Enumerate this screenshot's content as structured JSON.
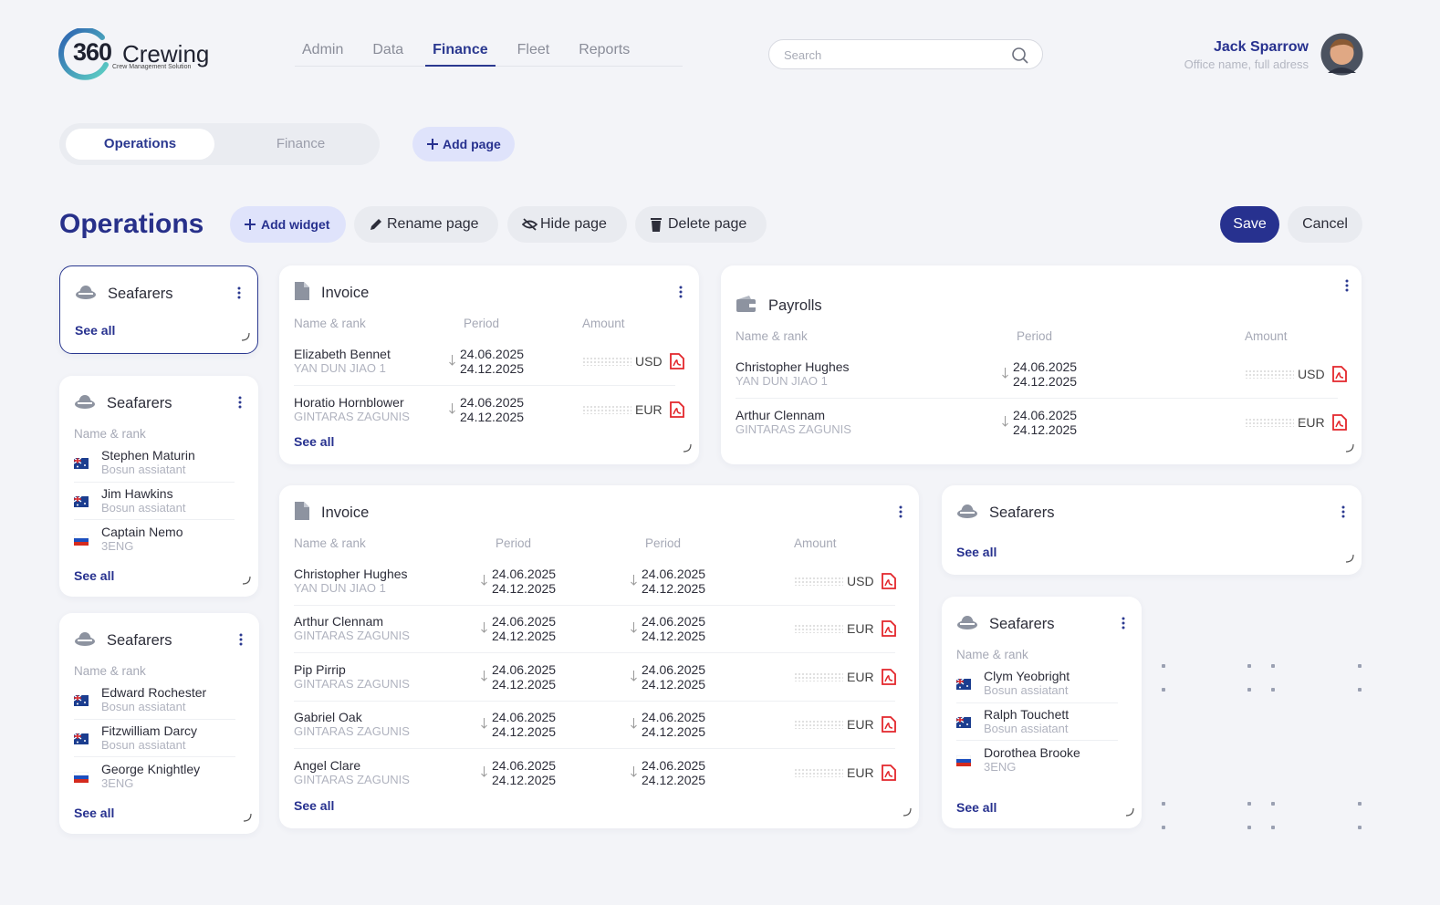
{
  "header": {
    "logo": {
      "number": "360",
      "word": "Crewing",
      "tagline": "Crew Management Solution"
    },
    "nav": {
      "items": [
        "Admin",
        "Data",
        "Finance",
        "Fleet",
        "Reports"
      ],
      "active": 2
    },
    "search": {
      "placeholder": "Search"
    },
    "user": {
      "name": "Jack Sparrow",
      "office": "Office name, full adress"
    }
  },
  "tabs": {
    "items": [
      "Operations",
      "Finance"
    ],
    "active": 0,
    "add_page": "Add page"
  },
  "toolbar": {
    "title": "Operations",
    "actions": [
      "Add widget",
      "Rename page",
      "Hide page",
      "Delete page"
    ],
    "save": "Save",
    "cancel": "Cancel"
  },
  "widgets": [
    {
      "kind": "seafarers",
      "title": "Seafarers",
      "selected": true,
      "see_all": "See all"
    },
    {
      "kind": "seafarers",
      "title": "Seafarers",
      "columns": [
        "Name & rank"
      ],
      "rows": [
        {
          "name": "Stephen Maturin",
          "rank": "Bosun assiatant",
          "flag": "au"
        },
        {
          "name": "Jim Hawkins",
          "rank": "Bosun assiatant",
          "flag": "au"
        },
        {
          "name": "Captain Nemo",
          "rank": "3ENG",
          "flag": "ru"
        }
      ],
      "see_all": "See all"
    },
    {
      "kind": "seafarers",
      "title": "Seafarers",
      "columns": [
        "Name & rank"
      ],
      "rows": [
        {
          "name": "Edward Rochester",
          "rank": "Bosun assiatant",
          "flag": "au"
        },
        {
          "name": "Fitzwilliam Darcy",
          "rank": "Bosun assiatant",
          "flag": "au"
        },
        {
          "name": "George Knightley",
          "rank": "3ENG",
          "flag": "ru"
        }
      ],
      "see_all": "See all"
    },
    {
      "kind": "invoice",
      "title": "Invoice",
      "columns": [
        "Name & rank",
        "Period",
        "Amount"
      ],
      "rows": [
        {
          "name": "Elizabeth Bennet",
          "rank": "YAN DUN JIAO 1",
          "periods": [
            [
              "24.06.2025",
              "24.12.2025"
            ]
          ],
          "currency": "USD"
        },
        {
          "name": "Horatio Hornblower",
          "rank": "GINTARAS ZAGUNIS",
          "periods": [
            [
              "24.06.2025",
              "24.12.2025"
            ]
          ],
          "currency": "EUR"
        }
      ],
      "see_all": "See all"
    },
    {
      "kind": "payroll",
      "title": "Payrolls",
      "columns": [
        "Name & rank",
        "Period",
        "Amount"
      ],
      "rows": [
        {
          "name": "Christopher Hughes",
          "rank": "YAN DUN JIAO 1",
          "periods": [
            [
              "24.06.2025",
              "24.12.2025"
            ]
          ],
          "currency": "USD"
        },
        {
          "name": "Arthur Clennam",
          "rank": "GINTARAS ZAGUNIS",
          "periods": [
            [
              "24.06.2025",
              "24.12.2025"
            ]
          ],
          "currency": "EUR"
        }
      ]
    },
    {
      "kind": "invoice",
      "title": "Invoice",
      "columns": [
        "Name & rank",
        "Period",
        "Period",
        "Amount"
      ],
      "rows": [
        {
          "name": "Christopher Hughes",
          "rank": "YAN DUN JIAO 1",
          "periods": [
            [
              "24.06.2025",
              "24.12.2025"
            ],
            [
              "24.06.2025",
              "24.12.2025"
            ]
          ],
          "currency": "USD"
        },
        {
          "name": "Arthur Clennam",
          "rank": "GINTARAS ZAGUNIS",
          "periods": [
            [
              "24.06.2025",
              "24.12.2025"
            ],
            [
              "24.06.2025",
              "24.12.2025"
            ]
          ],
          "currency": "EUR"
        },
        {
          "name": "Pip Pirrip",
          "rank": "GINTARAS ZAGUNIS",
          "periods": [
            [
              "24.06.2025",
              "24.12.2025"
            ],
            [
              "24.06.2025",
              "24.12.2025"
            ]
          ],
          "currency": "EUR"
        },
        {
          "name": "Gabriel Oak",
          "rank": "GINTARAS ZAGUNIS",
          "periods": [
            [
              "24.06.2025",
              "24.12.2025"
            ],
            [
              "24.06.2025",
              "24.12.2025"
            ]
          ],
          "currency": "EUR"
        },
        {
          "name": "Angel Clare",
          "rank": "GINTARAS ZAGUNIS",
          "periods": [
            [
              "24.06.2025",
              "24.12.2025"
            ],
            [
              "24.06.2025",
              "24.12.2025"
            ]
          ],
          "currency": "EUR"
        }
      ],
      "see_all": "See all"
    },
    {
      "kind": "seafarers",
      "title": "Seafarers",
      "selected": false,
      "see_all": "See all"
    },
    {
      "kind": "seafarers",
      "title": "Seafarers",
      "columns": [
        "Name & rank"
      ],
      "rows": [
        {
          "name": "Clym Yeobright",
          "rank": "Bosun assiatant",
          "flag": "au"
        },
        {
          "name": "Ralph Touchett",
          "rank": "Bosun assiatant",
          "flag": "au"
        },
        {
          "name": "Dorothea Brooke",
          "rank": "3ENG",
          "flag": "ru"
        }
      ],
      "see_all": "See all"
    }
  ]
}
